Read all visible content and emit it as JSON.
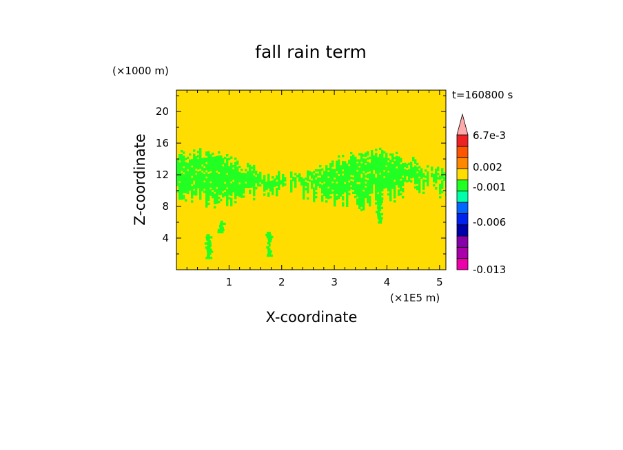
{
  "chart_data": {
    "type": "heatmap",
    "title": "fall rain term",
    "xlabel": "X-coordinate",
    "ylabel": "Z-coordinate",
    "x_unit": "(×1E5 m)",
    "y_unit": "(×1000 m)",
    "time_label": "t=160800 s",
    "xlim": [
      0,
      5.12
    ],
    "ylim": [
      0,
      22.7
    ],
    "x_ticks": [
      1,
      2,
      3,
      4,
      5
    ],
    "y_ticks": [
      4,
      8,
      12,
      16,
      20
    ],
    "background_level": "0 to 0.002",
    "colorbar": {
      "levels": [
        {
          "lo": -0.013,
          "hi": -0.011,
          "color": "#ee00aa"
        },
        {
          "lo": -0.011,
          "hi": -0.009,
          "color": "#aa00aa"
        },
        {
          "lo": -0.009,
          "hi": -0.007,
          "color": "#8800aa"
        },
        {
          "lo": -0.007,
          "hi": -0.005,
          "color": "#0000aa"
        },
        {
          "lo": -0.005,
          "hi": -0.003,
          "color": "#0022ee"
        },
        {
          "lo": -0.003,
          "hi": -0.002,
          "color": "#0066ff"
        },
        {
          "lo": -0.002,
          "hi": -0.001,
          "color": "#00ffaa"
        },
        {
          "lo": -0.001,
          "hi": 0,
          "color": "#22ff22"
        },
        {
          "lo": 0,
          "hi": 0.002,
          "color": "#ffdd00"
        },
        {
          "lo": 0.002,
          "hi": 0.004,
          "color": "#ff8800"
        },
        {
          "lo": 0.004,
          "hi": 0.0055,
          "color": "#ff5500"
        },
        {
          "lo": 0.0055,
          "hi": 0.0067,
          "color": "#ee2222"
        }
      ],
      "over_color": "#ffaaaa",
      "tick_labels": [
        "6.7e-3",
        "0.002",
        "-0.001",
        "-0.006",
        "-0.013"
      ]
    },
    "band": {
      "x_start": 0,
      "x_end": 5.12,
      "z_bottom_approx": 10,
      "z_top_approx": 16
    }
  }
}
